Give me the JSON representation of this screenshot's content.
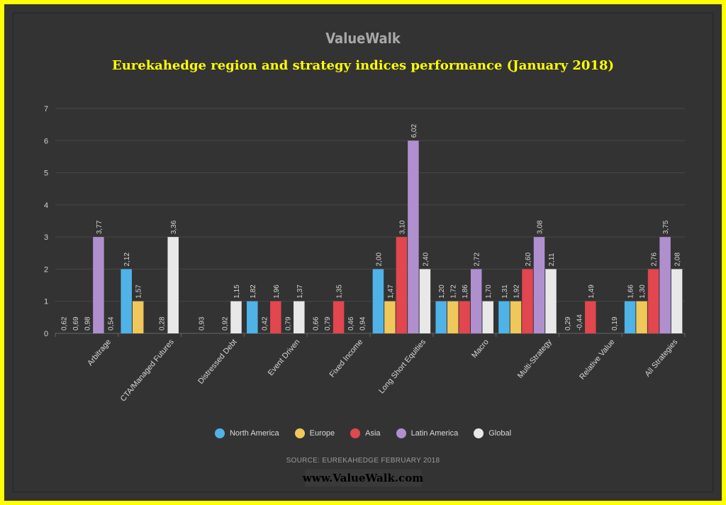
{
  "header": {
    "brand": "ValueWalk",
    "title": "Eurekahedge region and strategy indices performance (January 2018)"
  },
  "footer": {
    "source": "SOURCE: EUREKAHEDGE FEBRUARY 2018",
    "website": "www.ValueWalk.com"
  },
  "colors": {
    "background": "#333333",
    "frame": "#ffff00",
    "title": "#ffff00"
  },
  "chart_data": {
    "type": "bar",
    "categories": [
      "Arbitrage",
      "CTA/Managed Futures",
      "Distressed Debt",
      "Event Driven",
      "Fixed Income",
      "Long Short Equities",
      "Macro",
      "Multi-Strategy",
      "Relative Value",
      "All Strategies"
    ],
    "series": [
      {
        "name": "North America",
        "color": "#4fb3e8",
        "values": [
          0.62,
          2.12,
          null,
          1.82,
          0.66,
          2.0,
          1.2,
          1.31,
          0.29,
          1.66
        ]
      },
      {
        "name": "Europe",
        "color": "#f0c75a",
        "values": [
          0.69,
          1.57,
          0.93,
          0.42,
          0.79,
          1.47,
          1.72,
          1.92,
          -0.44,
          1.3
        ]
      },
      {
        "name": "Asia",
        "color": "#e2464f",
        "values": [
          0.98,
          null,
          null,
          1.96,
          1.35,
          3.1,
          1.86,
          2.6,
          1.49,
          2.76
        ]
      },
      {
        "name": "Latin America",
        "color": "#b08fcf",
        "values": [
          3.77,
          0.28,
          0.92,
          0.79,
          0.46,
          6.02,
          2.72,
          3.08,
          null,
          3.75
        ]
      },
      {
        "name": "Global",
        "color": "#e8e8e8",
        "values": [
          0.54,
          3.36,
          1.15,
          1.37,
          0.94,
          2.4,
          1.7,
          2.11,
          0.19,
          2.08
        ]
      }
    ],
    "y_ticks": [
      "0",
      "1",
      "2",
      "3",
      "4",
      "5",
      "6",
      "7"
    ],
    "ylim": [
      0,
      7
    ],
    "grid": true,
    "legend": "bottom"
  }
}
